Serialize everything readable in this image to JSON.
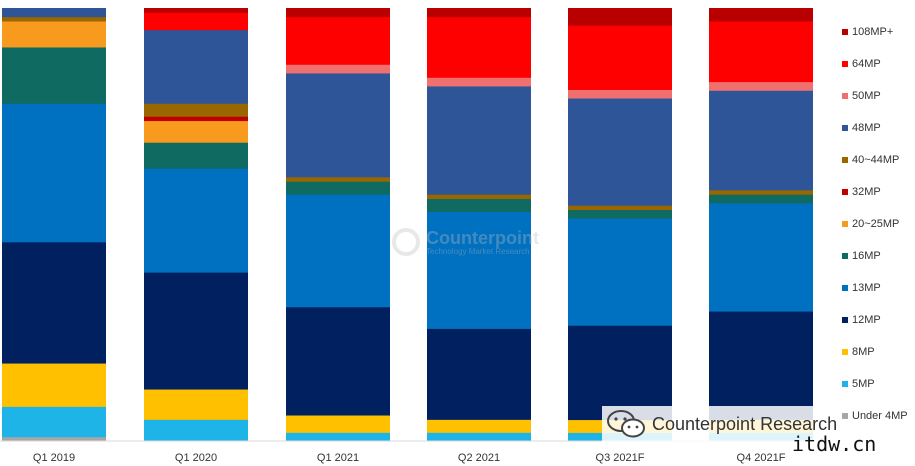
{
  "chart_data": {
    "type": "bar",
    "stacked": true,
    "percent": true,
    "categories": [
      "Q1 2019",
      "Q1 2020",
      "Q1 2021",
      "Q2 2021",
      "Q3 2021F",
      "Q4 2021F"
    ],
    "series": [
      {
        "name": "Under 4MP",
        "color": "#a6a6a6",
        "values": [
          1,
          0,
          0,
          0,
          0,
          0
        ]
      },
      {
        "name": "5MP",
        "color": "#1fb4e8",
        "values": [
          7,
          5,
          2,
          2,
          2,
          2
        ]
      },
      {
        "name": "8MP",
        "color": "#ffc000",
        "values": [
          10,
          7,
          4,
          3,
          3,
          3
        ]
      },
      {
        "name": "12MP",
        "color": "#002060",
        "values": [
          28,
          27,
          25,
          21,
          22,
          25
        ]
      },
      {
        "name": "13MP",
        "color": "#0070c0",
        "values": [
          32,
          24,
          26,
          27,
          25,
          25
        ]
      },
      {
        "name": "16MP",
        "color": "#0f6b62",
        "values": [
          13,
          6,
          3,
          3,
          2,
          2
        ]
      },
      {
        "name": "20~25MP",
        "color": "#f79a1e",
        "values": [
          6,
          5,
          0,
          0,
          0,
          0
        ]
      },
      {
        "name": "32MP",
        "color": "#c00000",
        "values": [
          0,
          1,
          0,
          0,
          0,
          0
        ]
      },
      {
        "name": "40~44MP",
        "color": "#996600",
        "values": [
          1,
          3,
          1,
          1,
          1,
          1
        ]
      },
      {
        "name": "48MP",
        "color": "#2e5597",
        "values": [
          2,
          17,
          24,
          25,
          25,
          23
        ]
      },
      {
        "name": "50MP",
        "color": "#f07070",
        "values": [
          0,
          0,
          2,
          2,
          2,
          2
        ]
      },
      {
        "name": "64MP",
        "color": "#ff0000",
        "values": [
          0,
          4,
          11,
          14,
          15,
          14
        ]
      },
      {
        "name": "108MP+",
        "color": "#b80000",
        "values": [
          0,
          1,
          2,
          2,
          4,
          3
        ]
      }
    ],
    "ylim": [
      0,
      100
    ],
    "legend_position": "right",
    "grid": false
  },
  "legend_order": [
    "108MP+",
    "64MP",
    "50MP",
    "48MP",
    "40~44MP",
    "32MP",
    "20~25MP",
    "16MP",
    "13MP",
    "12MP",
    "8MP",
    "5MP",
    "Under 4MP"
  ],
  "watermark": {
    "name": "Counterpoint",
    "tagline": "Technology Market Research"
  },
  "badge": {
    "text": "Counterpoint Research",
    "icon": "wechat-icon"
  },
  "site_text": "itdw.cn"
}
